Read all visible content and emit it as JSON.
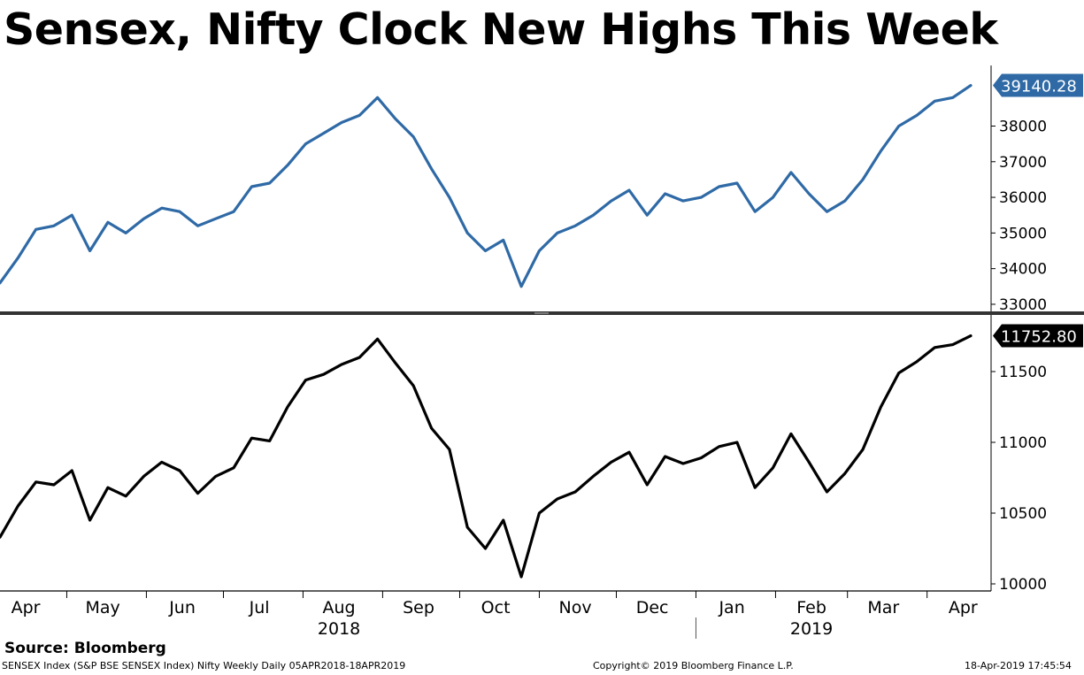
{
  "title": "Sensex, Nifty Clock New Highs This Week",
  "source": "Source: Bloomberg",
  "footer": {
    "left": "SENSEX Index (S&P BSE SENSEX Index) Nifty Weekly  Daily 05APR2018-18APR2019",
    "center": "Copyright© 2019 Bloomberg Finance L.P.",
    "right": "18-Apr-2019 17:45:54"
  },
  "colors": {
    "sensex": "#2f6aa6",
    "nifty": "#000000",
    "divider": "#333333"
  },
  "chart_data": [
    {
      "type": "line",
      "name": "sensex-panel",
      "title": "",
      "last_value_label": "39140.28",
      "ylim": [
        32800,
        39700
      ],
      "yticks": [
        33000,
        34000,
        35000,
        36000,
        37000,
        38000
      ],
      "ytick_labels": [
        "33000",
        "34000",
        "35000",
        "36000",
        "37000",
        "38000"
      ],
      "x_start": "2018-04-05",
      "x_end": "2019-04-18",
      "x": [
        "2018-04-05",
        "2018-04-12",
        "2018-04-19",
        "2018-04-26",
        "2018-05-03",
        "2018-05-10",
        "2018-05-17",
        "2018-05-24",
        "2018-05-31",
        "2018-06-07",
        "2018-06-14",
        "2018-06-21",
        "2018-06-28",
        "2018-07-05",
        "2018-07-12",
        "2018-07-19",
        "2018-07-26",
        "2018-08-02",
        "2018-08-09",
        "2018-08-16",
        "2018-08-23",
        "2018-08-30",
        "2018-09-06",
        "2018-09-13",
        "2018-09-20",
        "2018-09-27",
        "2018-10-04",
        "2018-10-11",
        "2018-10-18",
        "2018-10-25",
        "2018-11-01",
        "2018-11-08",
        "2018-11-15",
        "2018-11-22",
        "2018-11-29",
        "2018-12-06",
        "2018-12-13",
        "2018-12-20",
        "2018-12-27",
        "2019-01-03",
        "2019-01-10",
        "2019-01-17",
        "2019-01-24",
        "2019-01-31",
        "2019-02-07",
        "2019-02-14",
        "2019-02-21",
        "2019-02-28",
        "2019-03-07",
        "2019-03-14",
        "2019-03-21",
        "2019-03-28",
        "2019-04-04",
        "2019-04-11",
        "2019-04-18"
      ],
      "values": [
        33600,
        34300,
        35100,
        35200,
        35500,
        34500,
        35300,
        35000,
        35400,
        35700,
        35600,
        35200,
        35400,
        35600,
        36300,
        36400,
        36900,
        37500,
        37800,
        38100,
        38300,
        38800,
        38200,
        37700,
        36800,
        36000,
        35000,
        34500,
        34800,
        33500,
        34500,
        35000,
        35200,
        35500,
        35900,
        36200,
        35500,
        36100,
        35900,
        36000,
        36300,
        36400,
        35600,
        36000,
        36700,
        36100,
        35600,
        35900,
        36500,
        37300,
        38000,
        38300,
        38700,
        38800,
        39140.28
      ]
    },
    {
      "type": "line",
      "name": "nifty-panel",
      "title": "",
      "last_value_label": "11752.80",
      "ylim": [
        9950,
        11900
      ],
      "yticks": [
        10000,
        10500,
        11000,
        11500
      ],
      "ytick_labels": [
        "10000",
        "10500",
        "11000",
        "11500"
      ],
      "x_start": "2018-04-05",
      "x_end": "2019-04-18",
      "x": [
        "2018-04-05",
        "2018-04-12",
        "2018-04-19",
        "2018-04-26",
        "2018-05-03",
        "2018-05-10",
        "2018-05-17",
        "2018-05-24",
        "2018-05-31",
        "2018-06-07",
        "2018-06-14",
        "2018-06-21",
        "2018-06-28",
        "2018-07-05",
        "2018-07-12",
        "2018-07-19",
        "2018-07-26",
        "2018-08-02",
        "2018-08-09",
        "2018-08-16",
        "2018-08-23",
        "2018-08-30",
        "2018-09-06",
        "2018-09-13",
        "2018-09-20",
        "2018-09-27",
        "2018-10-04",
        "2018-10-11",
        "2018-10-18",
        "2018-10-25",
        "2018-11-01",
        "2018-11-08",
        "2018-11-15",
        "2018-11-22",
        "2018-11-29",
        "2018-12-06",
        "2018-12-13",
        "2018-12-20",
        "2018-12-27",
        "2019-01-03",
        "2019-01-10",
        "2019-01-17",
        "2019-01-24",
        "2019-01-31",
        "2019-02-07",
        "2019-02-14",
        "2019-02-21",
        "2019-02-28",
        "2019-03-07",
        "2019-03-14",
        "2019-03-21",
        "2019-03-28",
        "2019-04-04",
        "2019-04-11",
        "2019-04-18"
      ],
      "values": [
        10330,
        10550,
        10720,
        10700,
        10800,
        10450,
        10680,
        10620,
        10760,
        10860,
        10800,
        10640,
        10760,
        10820,
        11030,
        11010,
        11250,
        11440,
        11480,
        11550,
        11600,
        11730,
        11560,
        11400,
        11100,
        10950,
        10400,
        10250,
        10450,
        10050,
        10500,
        10600,
        10650,
        10760,
        10860,
        10930,
        10700,
        10900,
        10850,
        10890,
        10970,
        11000,
        10680,
        10820,
        11060,
        10860,
        10650,
        10780,
        10950,
        11250,
        11490,
        11570,
        11670,
        11690,
        11752.8
      ]
    }
  ],
  "x_axis": {
    "month_labels": [
      "Apr",
      "May",
      "Jun",
      "Jul",
      "Aug",
      "Sep",
      "Oct",
      "Nov",
      "Dec",
      "Jan",
      "Feb",
      "Mar",
      "Apr"
    ],
    "month_dates": [
      "2018-04-15",
      "2018-05-15",
      "2018-06-15",
      "2018-07-15",
      "2018-08-15",
      "2018-09-15",
      "2018-10-15",
      "2018-11-15",
      "2018-12-15",
      "2019-01-15",
      "2019-02-15",
      "2019-03-15",
      "2019-04-15"
    ],
    "boundary_dates": [
      "2018-05-01",
      "2018-06-01",
      "2018-07-01",
      "2018-08-01",
      "2018-09-01",
      "2018-10-01",
      "2018-11-01",
      "2018-12-01",
      "2019-01-01",
      "2019-02-01",
      "2019-03-01",
      "2019-04-01"
    ],
    "year_labels": [
      "2018",
      "2019"
    ],
    "year_label_dates": [
      "2018-08-15",
      "2019-02-15"
    ],
    "year_boundary_date": "2019-01-01"
  }
}
